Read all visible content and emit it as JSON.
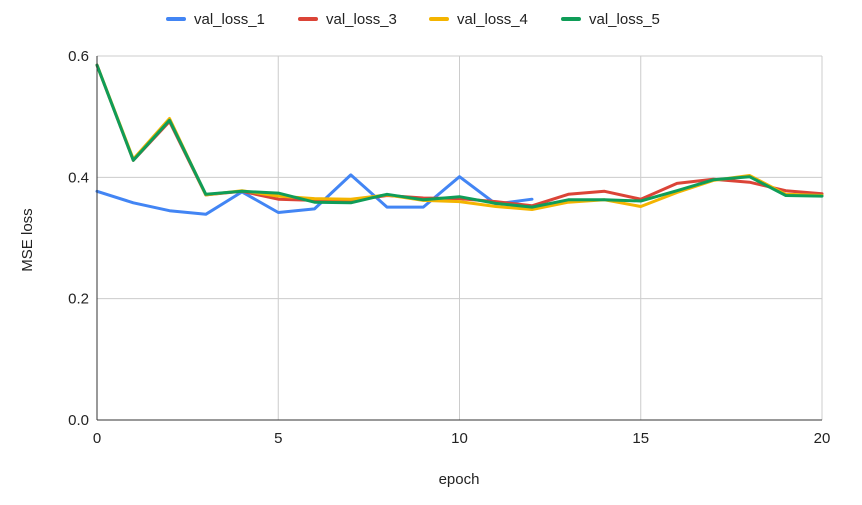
{
  "chart_data": {
    "type": "line",
    "title": "",
    "xlabel": "epoch",
    "ylabel": "MSE loss",
    "xlim": [
      0,
      20
    ],
    "ylim": [
      0,
      0.6
    ],
    "x_ticks": [
      0,
      5,
      10,
      15,
      20
    ],
    "y_ticks": [
      0.0,
      0.2,
      0.4,
      0.6
    ],
    "x_tick_labels": [
      "0",
      "5",
      "10",
      "15",
      "20"
    ],
    "y_tick_labels": [
      "0.0",
      "0.2",
      "0.4",
      "0.6"
    ],
    "grid": true,
    "legend_position": "top",
    "series": [
      {
        "name": "val_loss_1",
        "color": "#4285F4",
        "x": [
          0,
          1,
          2,
          3,
          4,
          5,
          6,
          7,
          8,
          9,
          10,
          11,
          12
        ],
        "values": [
          0.377,
          0.358,
          0.345,
          0.339,
          0.376,
          0.342,
          0.348,
          0.404,
          0.351,
          0.351,
          0.401,
          0.356,
          0.364
        ]
      },
      {
        "name": "val_loss_3",
        "color": "#DB4437",
        "x": [
          0,
          1,
          2,
          3,
          4,
          5,
          6,
          7,
          8,
          9,
          10,
          11,
          12,
          13,
          14,
          15,
          16,
          17,
          18,
          19,
          20
        ],
        "values": [
          0.585,
          0.428,
          0.492,
          0.371,
          0.377,
          0.364,
          0.362,
          0.362,
          0.37,
          0.366,
          0.365,
          0.36,
          0.353,
          0.372,
          0.377,
          0.364,
          0.39,
          0.397,
          0.392,
          0.378,
          0.373
        ]
      },
      {
        "name": "val_loss_4",
        "color": "#F4B400",
        "x": [
          0,
          1,
          2,
          3,
          4,
          5,
          6,
          7,
          8,
          9,
          10,
          11,
          12,
          13,
          14,
          15,
          16,
          17,
          18,
          19,
          20
        ],
        "values": [
          0.585,
          0.43,
          0.497,
          0.371,
          0.378,
          0.369,
          0.365,
          0.364,
          0.371,
          0.362,
          0.36,
          0.352,
          0.347,
          0.359,
          0.363,
          0.352,
          0.375,
          0.395,
          0.403,
          0.372,
          0.37
        ]
      },
      {
        "name": "val_loss_5",
        "color": "#0F9D58",
        "x": [
          0,
          1,
          2,
          3,
          4,
          5,
          6,
          7,
          8,
          9,
          10,
          11,
          12,
          13,
          14,
          15,
          16,
          17,
          18,
          19,
          20
        ],
        "values": [
          0.585,
          0.428,
          0.494,
          0.372,
          0.377,
          0.374,
          0.359,
          0.358,
          0.372,
          0.363,
          0.368,
          0.357,
          0.351,
          0.363,
          0.363,
          0.361,
          0.378,
          0.396,
          0.401,
          0.37,
          0.369
        ]
      }
    ]
  }
}
